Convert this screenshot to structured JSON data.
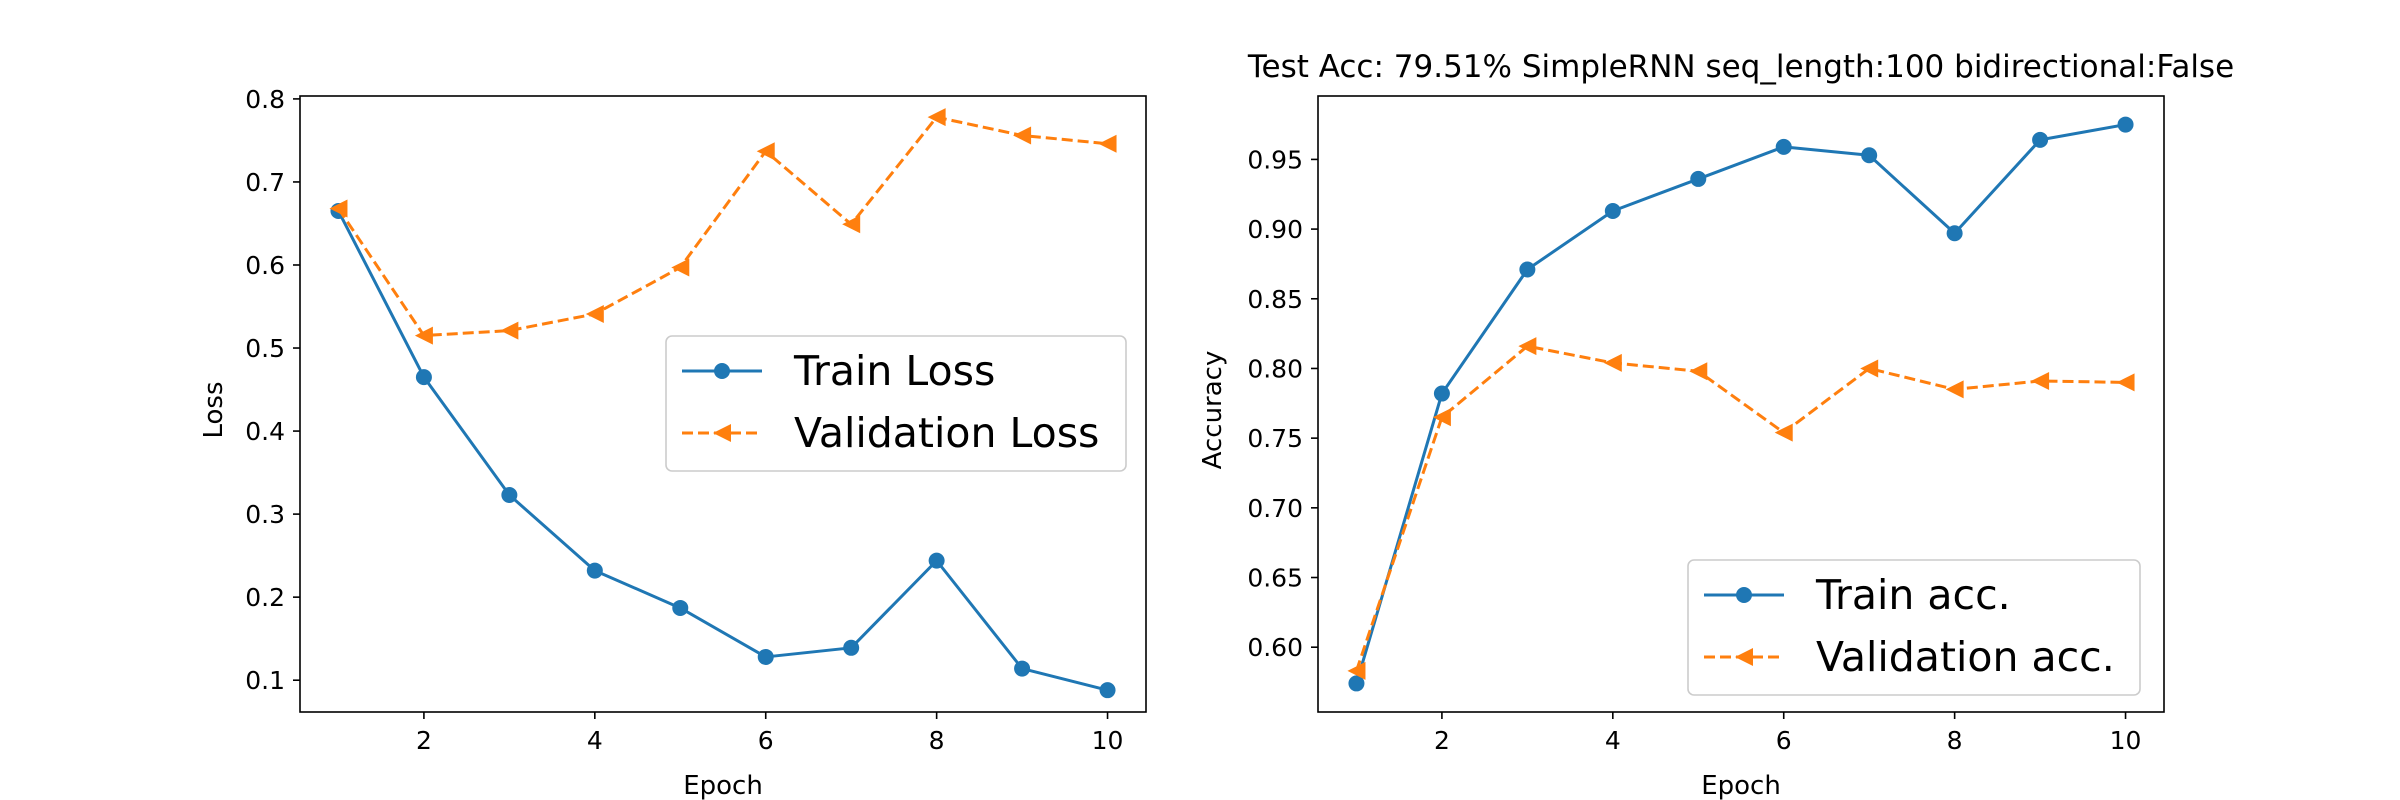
{
  "chart_data": [
    {
      "type": "line",
      "title": "",
      "xlabel": "Epoch",
      "ylabel": "Loss",
      "xlim": [
        0.55,
        10.45
      ],
      "ylim": [
        0.0617,
        0.8035
      ],
      "xticks": [
        2,
        4,
        6,
        8,
        10
      ],
      "yticks": [
        0.1,
        0.2,
        0.3,
        0.4,
        0.5,
        0.6,
        0.7,
        0.8
      ],
      "tick_decimals": 1,
      "grid": false,
      "legend_position": "center-right",
      "x": [
        1,
        2,
        3,
        4,
        5,
        6,
        7,
        8,
        9,
        10
      ],
      "series": [
        {
          "name": "Train Loss",
          "values": [
            0.665,
            0.465,
            0.323,
            0.232,
            0.187,
            0.128,
            0.139,
            0.244,
            0.114,
            0.088
          ],
          "color": "#1f77b4",
          "marker": "circle",
          "linestyle": "solid"
        },
        {
          "name": "Validation Loss",
          "values": [
            0.668,
            0.515,
            0.521,
            0.541,
            0.597,
            0.737,
            0.649,
            0.778,
            0.756,
            0.746
          ],
          "color": "#ff7f0e",
          "marker": "triangle-left",
          "linestyle": "dashed"
        }
      ]
    },
    {
      "type": "line",
      "title": "Test Acc: 79.51% SimpleRNN seq_length:100 bidirectional:False",
      "xlabel": "Epoch",
      "ylabel": "Accuracy",
      "xlim": [
        0.55,
        10.45
      ],
      "ylim": [
        0.5535,
        0.9955
      ],
      "xticks": [
        2,
        4,
        6,
        8,
        10
      ],
      "yticks": [
        0.6,
        0.65,
        0.7,
        0.75,
        0.8,
        0.85,
        0.9,
        0.95
      ],
      "tick_decimals": 2,
      "grid": false,
      "legend_position": "lower-right",
      "x": [
        1,
        2,
        3,
        4,
        5,
        6,
        7,
        8,
        9,
        10
      ],
      "series": [
        {
          "name": "Train acc.",
          "values": [
            0.574,
            0.782,
            0.871,
            0.913,
            0.936,
            0.959,
            0.953,
            0.897,
            0.964,
            0.975
          ],
          "color": "#1f77b4",
          "marker": "circle",
          "linestyle": "solid"
        },
        {
          "name": "Validation acc.",
          "values": [
            0.583,
            0.765,
            0.816,
            0.804,
            0.798,
            0.754,
            0.8,
            0.785,
            0.791,
            0.79
          ],
          "color": "#ff7f0e",
          "marker": "triangle-left",
          "linestyle": "dashed"
        }
      ]
    }
  ]
}
